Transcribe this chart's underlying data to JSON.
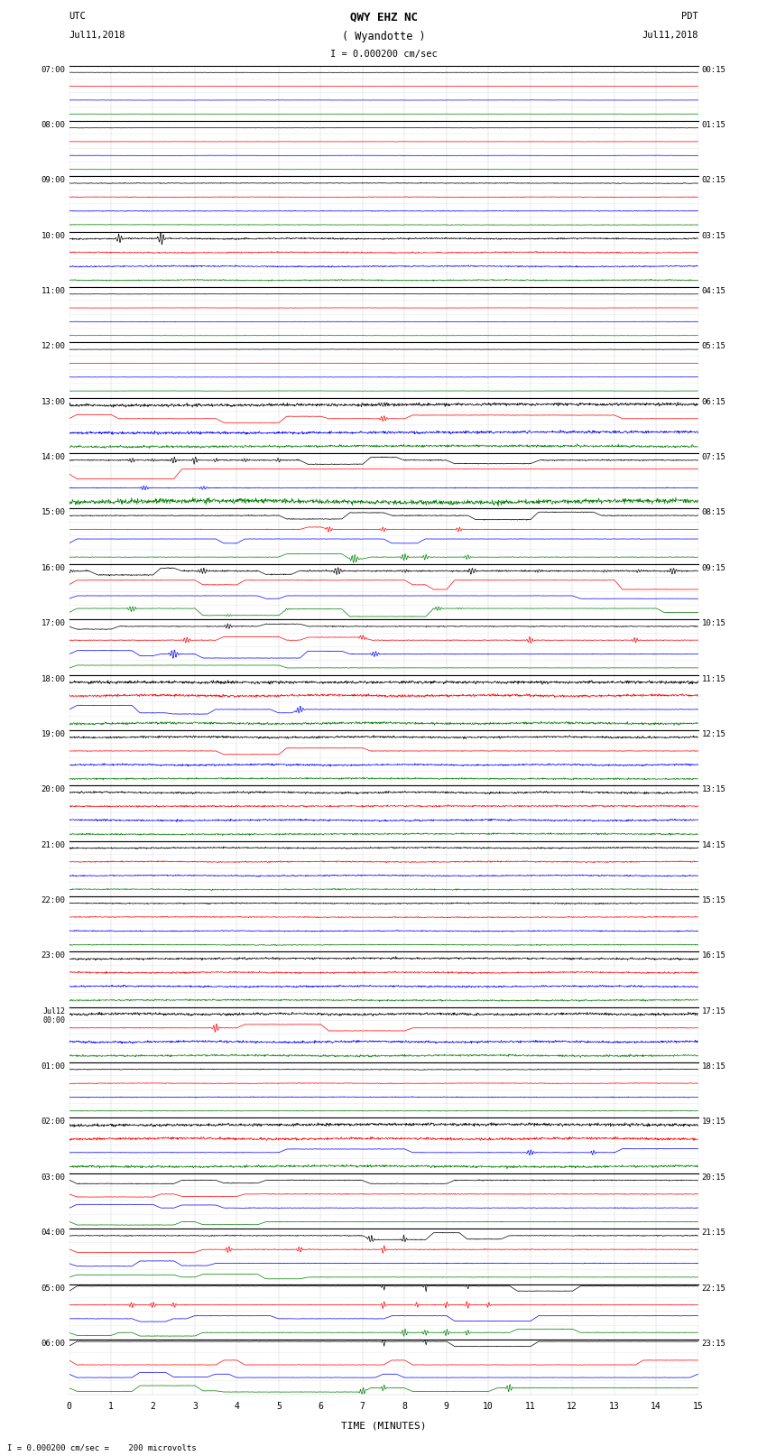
{
  "title_line1": "QWY EHZ NC",
  "title_line2": "( Wyandotte )",
  "scale_label": "I = 0.000200 cm/sec",
  "utc_label1": "UTC",
  "utc_label2": "Jul11,2018",
  "pdt_label1": "PDT",
  "pdt_label2": "Jul11,2018",
  "bottom_note": "I = 0.000200 cm/sec =    200 microvolts",
  "xlabel": "TIME (MINUTES)",
  "left_times": [
    "07:00",
    "08:00",
    "09:00",
    "10:00",
    "11:00",
    "12:00",
    "13:00",
    "14:00",
    "15:00",
    "16:00",
    "17:00",
    "18:00",
    "19:00",
    "20:00",
    "21:00",
    "22:00",
    "23:00",
    "Jul12\n00:00",
    "01:00",
    "02:00",
    "03:00",
    "04:00",
    "05:00",
    "06:00"
  ],
  "right_times": [
    "00:15",
    "01:15",
    "02:15",
    "03:15",
    "04:15",
    "05:15",
    "06:15",
    "07:15",
    "08:15",
    "09:15",
    "10:15",
    "11:15",
    "12:15",
    "13:15",
    "14:15",
    "15:15",
    "16:15",
    "17:15",
    "18:15",
    "19:15",
    "20:15",
    "21:15",
    "22:15",
    "23:15"
  ],
  "n_rows": 24,
  "minutes": 15,
  "background_color": "#ffffff",
  "grid_color": "#aaaaaa",
  "border_color": "#000000",
  "text_color": "#000000",
  "colors": [
    "black",
    "red",
    "blue",
    "green"
  ],
  "n_channels": 4
}
